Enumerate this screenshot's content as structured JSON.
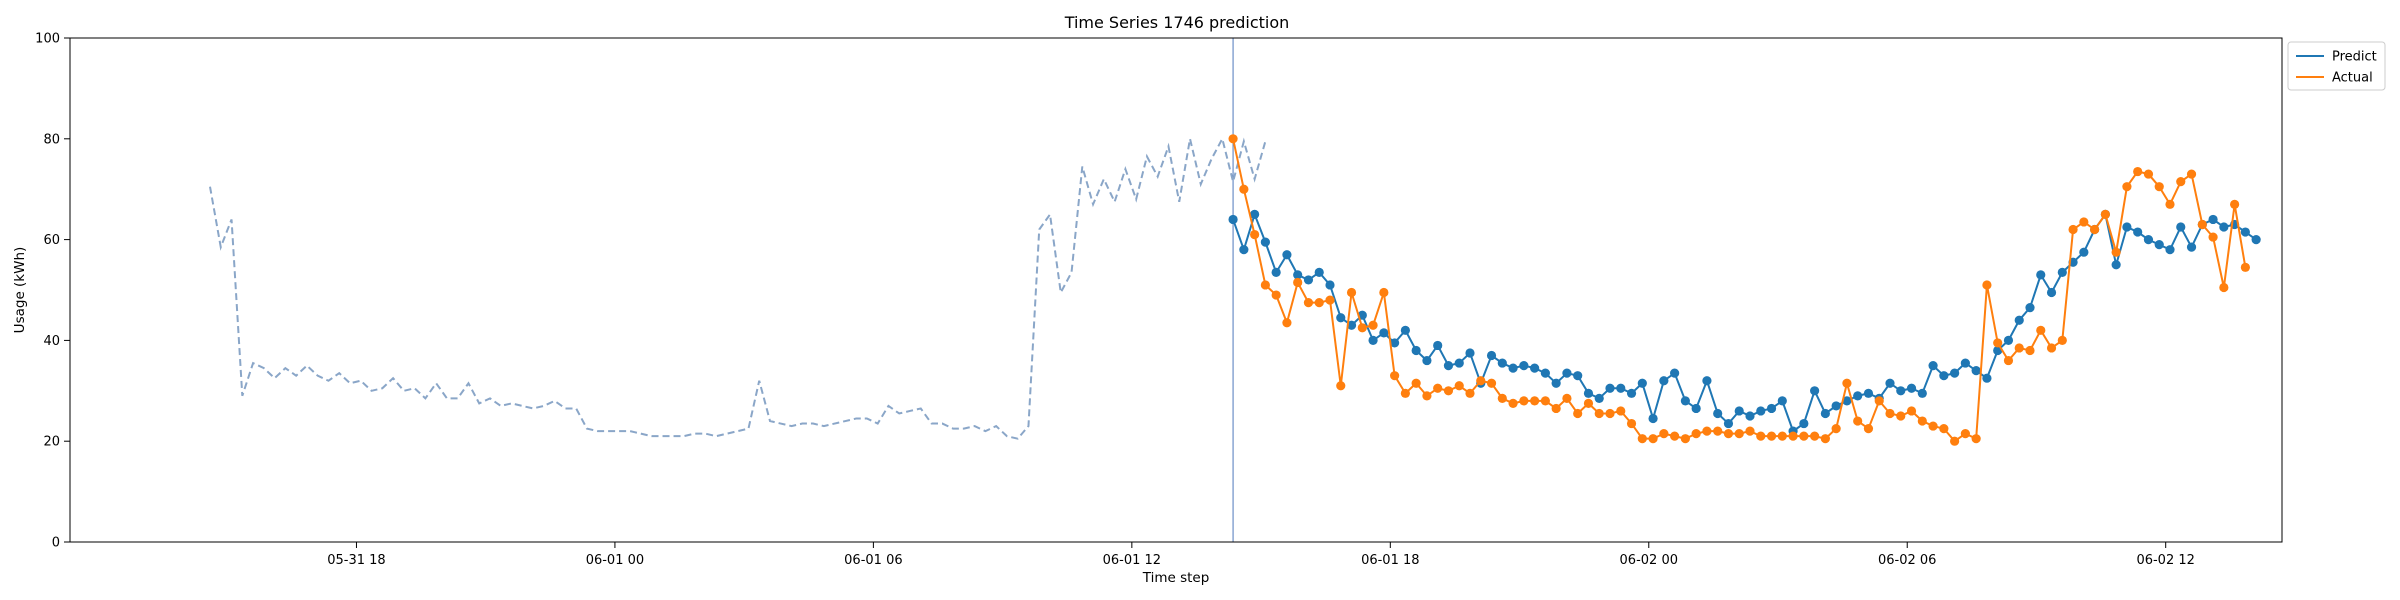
{
  "chart_data": {
    "type": "line",
    "title": "Time Series 1746 prediction",
    "xlabel": "Time step",
    "ylabel": "Usage (kWh)",
    "ylim": [
      0,
      100
    ],
    "yticks": [
      0,
      20,
      40,
      60,
      80,
      100
    ],
    "x_unit": "hours since 2025-05-31 00:00",
    "xlim": [
      11.35,
      62.7
    ],
    "xticks": [
      {
        "x": 18,
        "label": "05-31 18"
      },
      {
        "x": 24,
        "label": "06-01 00"
      },
      {
        "x": 30,
        "label": "06-01 06"
      },
      {
        "x": 36,
        "label": "06-01 12"
      },
      {
        "x": 42,
        "label": "06-01 18"
      },
      {
        "x": 48,
        "label": "06-02 00"
      },
      {
        "x": 54,
        "label": "06-02 06"
      },
      {
        "x": 60,
        "label": "06-02 12"
      }
    ],
    "forecast_start": 38.35,
    "legend_position": "top-right",
    "history": {
      "x_start": 14.6,
      "x_step": 0.25,
      "values": [
        70.5,
        58.5,
        64,
        29,
        35.5,
        34.5,
        32.5,
        34.5,
        33,
        35,
        33,
        32,
        33.5,
        31.5,
        32,
        30,
        30.5,
        32.5,
        30,
        30.5,
        28.5,
        31.5,
        28.5,
        28.5,
        31.5,
        27.5,
        28.5,
        27,
        27.5,
        27,
        26.5,
        27,
        28,
        26.5,
        26.5,
        22.5,
        22,
        22,
        22,
        22,
        21.5,
        21,
        21,
        21,
        21,
        21.5,
        21.5,
        21,
        21.5,
        22,
        22.5,
        32,
        24,
        23.5,
        23,
        23.5,
        23.5,
        23,
        23.5,
        24,
        24.5,
        24.5,
        23.5,
        27,
        25.5,
        26,
        26.5,
        23.5,
        23.5,
        22.5,
        22.5,
        23,
        22,
        23,
        21,
        20.5,
        23,
        62,
        65,
        49.5,
        53.5,
        74.5,
        67,
        72,
        67.5,
        74,
        68,
        76.5,
        72.5,
        78.5,
        67.5,
        80,
        71,
        76,
        80,
        71.5,
        79.5,
        72,
        79.5
      ]
    },
    "forecast_x_start": 38.35,
    "forecast_x_step": 0.25,
    "series": [
      {
        "name": "Predict",
        "color": "#1f77b4",
        "values": [
          64,
          58,
          65,
          59.5,
          53.5,
          57,
          53,
          52,
          53.5,
          51,
          44.5,
          43,
          45,
          40,
          41.5,
          39.5,
          42,
          38,
          36,
          39,
          35,
          35.5,
          37.5,
          31.5,
          37,
          35.5,
          34.5,
          35,
          34.5,
          33.5,
          31.5,
          33.5,
          33,
          29.5,
          28.5,
          30.5,
          30.5,
          29.5,
          31.5,
          24.5,
          32,
          33.5,
          28,
          26.5,
          32,
          25.5,
          23.5,
          26,
          25,
          26,
          26.5,
          28,
          22,
          23.5,
          30,
          25.5,
          27,
          28,
          29,
          29.5,
          28.5,
          31.5,
          30,
          30.5,
          29.5,
          35,
          33,
          33.5,
          35.5,
          34,
          32.5,
          38,
          40,
          44,
          46.5,
          53,
          49.5,
          53.5,
          55.5,
          57.5,
          62,
          65,
          55,
          62.5,
          61.5,
          60,
          59,
          58,
          62.5,
          58.5,
          63,
          64,
          62.5,
          63,
          61.5,
          60
        ]
      },
      {
        "name": "Actual",
        "color": "#ff7f0e",
        "values": [
          80,
          70,
          61,
          51,
          49,
          43.5,
          51.5,
          47.5,
          47.5,
          48,
          31,
          49.5,
          42.5,
          43,
          49.5,
          33,
          29.5,
          31.5,
          29,
          30.5,
          30,
          31,
          29.5,
          32,
          31.5,
          28.5,
          27.5,
          28,
          28,
          28,
          26.5,
          28.5,
          25.5,
          27.5,
          25.5,
          25.5,
          26,
          23.5,
          20.5,
          20.5,
          21.5,
          21,
          20.5,
          21.5,
          22,
          22,
          21.5,
          21.5,
          22,
          21,
          21,
          21,
          21,
          21,
          21,
          20.5,
          22.5,
          31.5,
          24,
          22.5,
          28,
          25.5,
          25,
          26,
          24,
          23,
          22.5,
          20,
          21.5,
          20.5,
          51,
          39.5,
          36,
          38.5,
          38,
          42,
          38.5,
          40,
          62,
          63.5,
          62,
          65,
          57.5,
          70.5,
          73.5,
          73,
          70.5,
          67,
          71.5,
          73,
          63,
          60.5,
          50.5,
          67,
          54.5
        ]
      }
    ]
  }
}
